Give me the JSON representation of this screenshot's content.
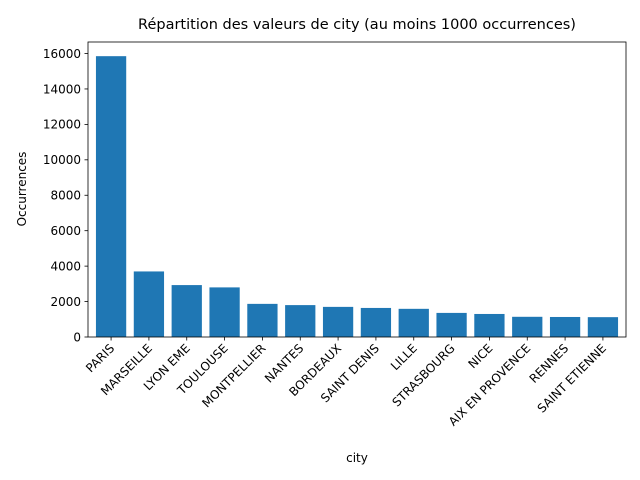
{
  "chart_data": {
    "type": "bar",
    "title": "Répartition des valeurs de city (au moins 1000 occurrences)",
    "xlabel": "city",
    "ylabel": "Occurrences",
    "ylim": [
      0,
      16650
    ],
    "yticks": [
      0,
      2000,
      4000,
      6000,
      8000,
      10000,
      12000,
      14000,
      16000
    ],
    "grid": false,
    "bar_color": "#1f77b4",
    "categories": [
      "PARIS",
      "MARSEILLE",
      "LYON EME",
      "TOULOUSE",
      "MONTPELLIER",
      "NANTES",
      "BORDEAUX",
      "SAINT DENIS",
      "LILLE",
      "STRASBOURG",
      "NICE",
      "AIX EN PROVENCE",
      "RENNES",
      "SAINT ETIENNE"
    ],
    "values": [
      15850,
      3700,
      2930,
      2800,
      1870,
      1800,
      1700,
      1640,
      1590,
      1360,
      1300,
      1140,
      1130,
      1120
    ]
  }
}
